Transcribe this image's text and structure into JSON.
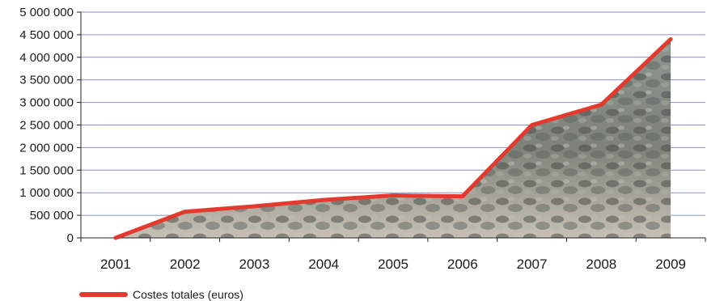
{
  "chart_data": {
    "type": "area",
    "x": [
      "2001",
      "2002",
      "2003",
      "2004",
      "2005",
      "2006",
      "2007",
      "2008",
      "2009"
    ],
    "series": [
      {
        "name": "Costes totales (euros)",
        "values": [
          0,
          580000,
          700000,
          840000,
          940000,
          920000,
          2500000,
          2950000,
          4400000
        ]
      }
    ],
    "y_ticks": [
      "0",
      "500 000",
      "1 000 000",
      "1 500 000",
      "2 000 000",
      "2 500 000",
      "3 000 000",
      "3 500 000",
      "4 000 000",
      "4 500 000",
      "5 000 000"
    ],
    "ylim": [
      0,
      5000000
    ],
    "grid": true,
    "legend_position": "bottom-left",
    "colors": {
      "line": "#e23a2f",
      "grid": "#8a8fc4",
      "area_top": "#9aa49c",
      "area_bottom": "#c8c0b4"
    },
    "fill_texture": "mussel-shells-photo"
  }
}
